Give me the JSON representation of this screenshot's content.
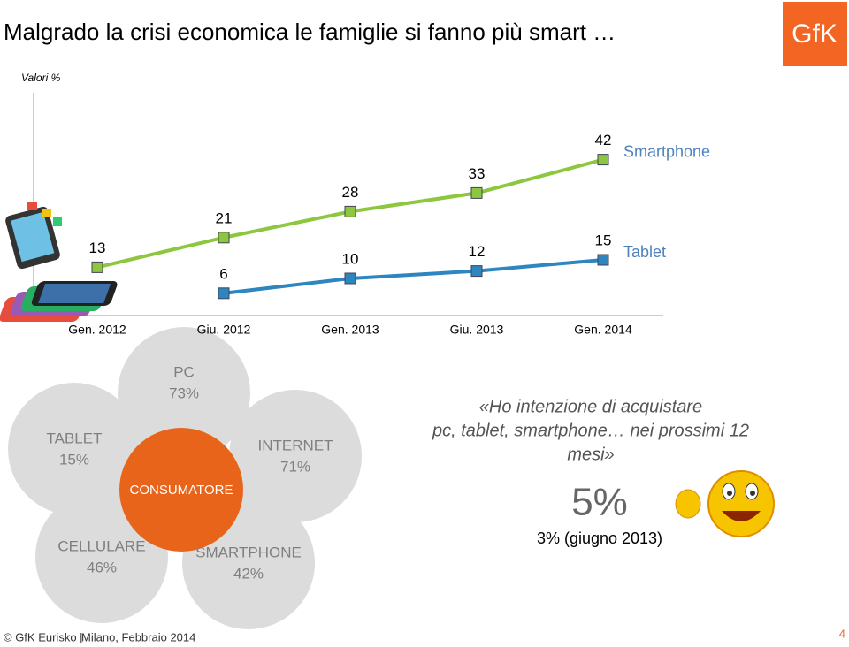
{
  "chart_data": {
    "type": "line",
    "title": "Malgrado la crisi economica le famiglie si fanno più smart …",
    "y_label": "Valori %",
    "categories": [
      "Gen. 2012",
      "Giu. 2012",
      "Gen. 2013",
      "Giu. 2013",
      "Gen. 2014"
    ],
    "series": [
      {
        "name": "Smartphone",
        "color": "#8dc63f",
        "values": [
          13,
          21,
          28,
          33,
          42
        ]
      },
      {
        "name": "Tablet",
        "color": "#2e86c1",
        "values": [
          null,
          6,
          10,
          12,
          15
        ]
      }
    ],
    "ylim": [
      0,
      60
    ]
  },
  "logo": "GfK",
  "diagram": {
    "center": "CONSUMATORE",
    "nodes": [
      {
        "label": "TABLET",
        "value": "15%"
      },
      {
        "label": "PC",
        "value": "73%"
      },
      {
        "label": "INTERNET",
        "value": "71%"
      },
      {
        "label": "CELLULARE",
        "value": "46%"
      },
      {
        "label": "SMARTPHONE",
        "value": "42%"
      }
    ]
  },
  "quote": {
    "lines": [
      "«Ho intenzione di acquistare",
      "pc, tablet, smartphone… nei prossimi 12",
      "mesi»"
    ],
    "figure": "5%",
    "previous": "3% (giugno 2013)"
  },
  "footer": {
    "source": "© GfK Eurisko |",
    "place": "Milano, Febbraio 2014",
    "page": "4"
  }
}
